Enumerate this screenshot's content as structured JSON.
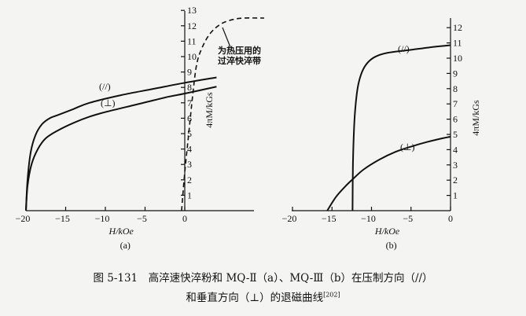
{
  "chart_data": [
    {
      "type": "line",
      "panel_label": "(a)",
      "xlabel": "H/kOe",
      "ylabel": "4πM/kGs",
      "xlim": [
        -20,
        9
      ],
      "ylim": [
        0,
        13
      ],
      "xticks": [
        "-20",
        "-15",
        "-10",
        "-5",
        "0"
      ],
      "yticks": [
        "1",
        "2",
        "3",
        "4",
        "5",
        "6",
        "7",
        "8",
        "9",
        "10",
        "11",
        "12",
        "13"
      ],
      "grid": false,
      "series": [
        {
          "name": "(//)",
          "style": "solid",
          "points": [
            [
              -20,
              0
            ],
            [
              -19.8,
              2
            ],
            [
              -19.4,
              3.8
            ],
            [
              -18.8,
              4.9
            ],
            [
              -18,
              5.6
            ],
            [
              -17,
              6.0
            ],
            [
              -16,
              6.2
            ],
            [
              -14,
              6.6
            ],
            [
              -12,
              7.0
            ],
            [
              -8,
              7.5
            ],
            [
              -4,
              7.9
            ],
            [
              0,
              8.3
            ],
            [
              4,
              8.65
            ]
          ]
        },
        {
          "name": "(⊥)",
          "style": "solid",
          "points": [
            [
              -20,
              0
            ],
            [
              -19.8,
              1.6
            ],
            [
              -19.3,
              3.0
            ],
            [
              -18.5,
              4.0
            ],
            [
              -17.5,
              4.7
            ],
            [
              -16,
              5.2
            ],
            [
              -14,
              5.7
            ],
            [
              -12,
              6.1
            ],
            [
              -10,
              6.4
            ],
            [
              -6,
              6.9
            ],
            [
              -2,
              7.4
            ],
            [
              0,
              7.6
            ],
            [
              4,
              8.05
            ]
          ]
        },
        {
          "name": "为热压用的 过淬快淬带",
          "style": "dashed",
          "points": [
            [
              -0.4,
              0
            ],
            [
              0,
              2.5
            ],
            [
              0.5,
              5
            ],
            [
              1.0,
              7.5
            ],
            [
              1.5,
              9.5
            ],
            [
              2.2,
              10.6
            ],
            [
              3.2,
              11.5
            ],
            [
              4.5,
              12.1
            ],
            [
              6,
              12.4
            ],
            [
              7.5,
              12.5
            ],
            [
              10,
              12.5
            ]
          ]
        }
      ],
      "annotation": [
        "为热压用的",
        "过淬快淬带"
      ]
    },
    {
      "type": "line",
      "panel_label": "(b)",
      "xlabel": "H/kOe",
      "ylabel": "4πM/kGs",
      "xlim": [
        -20,
        0
      ],
      "ylim": [
        0,
        12.5
      ],
      "xticks": [
        "-20",
        "-15",
        "-10",
        "-5",
        "0"
      ],
      "yticks": [
        "1",
        "2",
        "3",
        "4",
        "5",
        "6",
        "7",
        "8",
        "9",
        "10",
        "11",
        "12"
      ],
      "grid": false,
      "series": [
        {
          "name": "(//)",
          "style": "solid",
          "points": [
            [
              -12.4,
              0
            ],
            [
              -12.35,
              3
            ],
            [
              -12.2,
              5.5
            ],
            [
              -12.0,
              7.0
            ],
            [
              -11.7,
              8.2
            ],
            [
              -11.2,
              9.1
            ],
            [
              -10.5,
              9.7
            ],
            [
              -9.5,
              10.1
            ],
            [
              -8,
              10.35
            ],
            [
              -5,
              10.55
            ],
            [
              -2,
              10.75
            ],
            [
              0,
              10.85
            ]
          ]
        },
        {
          "name": "(⊥)",
          "style": "solid",
          "points": [
            [
              -15.6,
              0
            ],
            [
              -14.5,
              0.9
            ],
            [
              -13.3,
              1.6
            ],
            [
              -12.3,
              2.1
            ],
            [
              -11,
              2.7
            ],
            [
              -9,
              3.35
            ],
            [
              -7,
              3.85
            ],
            [
              -5,
              4.2
            ],
            [
              -3,
              4.5
            ],
            [
              -1,
              4.75
            ],
            [
              0,
              4.85
            ]
          ]
        }
      ]
    }
  ],
  "caption": {
    "line1": "图 5-131　高淬速快淬粉和 MQ-Ⅱ（a）、MQ-Ⅲ（b）在压制方向（//）",
    "line2": "和垂直方向（⊥）的退磁曲线",
    "ref": "[202]"
  }
}
